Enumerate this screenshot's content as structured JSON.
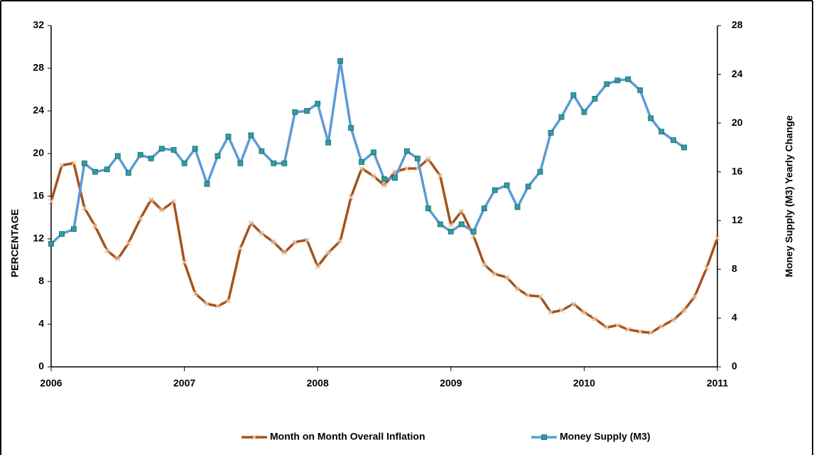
{
  "chart_data": {
    "type": "line",
    "y_label": "PERCENTAGE",
    "y2_label": "Money Supply  (M3) Yearly Change",
    "x": [
      2006,
      2006.08,
      2006.17,
      2006.25,
      2006.33,
      2006.42,
      2006.5,
      2006.58,
      2006.67,
      2006.75,
      2006.83,
      2006.92,
      2007,
      2007.08,
      2007.17,
      2007.25,
      2007.33,
      2007.42,
      2007.5,
      2007.58,
      2007.67,
      2007.75,
      2007.83,
      2007.92,
      2008,
      2008.08,
      2008.17,
      2008.25,
      2008.33,
      2008.42,
      2008.5,
      2008.58,
      2008.67,
      2008.75,
      2008.83,
      2008.92,
      2009,
      2009.08,
      2009.17,
      2009.25,
      2009.33,
      2009.42,
      2009.5,
      2009.58,
      2009.67,
      2009.75,
      2009.83,
      2009.92,
      2010,
      2010.08,
      2010.17,
      2010.25,
      2010.33,
      2010.42,
      2010.5,
      2010.58,
      2010.67,
      2010.75,
      2010.83,
      2010.92,
      2011
    ],
    "series": [
      {
        "name": "Month on Month Overall Inflation",
        "color": "#a4531c",
        "marker": "x",
        "axis": "y",
        "values": [
          15.5,
          18.9,
          19.1,
          14.9,
          13.2,
          10.9,
          10.1,
          11.6,
          13.9,
          15.7,
          14.7,
          15.5,
          9.8,
          6.9,
          5.9,
          5.7,
          6.2,
          11.1,
          13.5,
          12.5,
          11.7,
          10.7,
          11.7,
          11.9,
          9.4,
          10.7,
          11.8,
          15.9,
          18.6,
          17.9,
          17.0,
          18.3,
          18.6,
          18.6,
          19.5,
          17.9,
          13.3,
          14.6,
          12.3,
          9.6,
          8.7,
          8.4,
          7.3,
          6.7,
          6.6,
          5.1,
          5.3,
          5.9,
          5.1,
          4.5,
          3.7,
          3.9,
          3.5,
          3.3,
          3.2,
          3.8,
          4.4,
          5.3,
          6.6,
          9.3,
          12.1
        ]
      },
      {
        "name": "Money Supply (M3)",
        "color": "#5b9bd5",
        "marker": "square",
        "marker_color": "#2aa198",
        "axis": "y2",
        "values": [
          10.1,
          10.9,
          11.3,
          16.7,
          16.0,
          16.2,
          17.3,
          15.9,
          17.4,
          17.1,
          17.9,
          17.8,
          16.7,
          17.9,
          15.0,
          17.3,
          18.9,
          16.7,
          19.0,
          17.7,
          16.7,
          16.7,
          20.9,
          21.0,
          21.6,
          18.4,
          25.1,
          19.6,
          16.8,
          17.6,
          15.4,
          15.5,
          17.7,
          17.1,
          13.0,
          11.7,
          11.1,
          11.7,
          11.1,
          13.0,
          14.5,
          14.9,
          13.1,
          14.8,
          16.0,
          19.2,
          20.5,
          22.3,
          20.9,
          22.0,
          23.2,
          23.5,
          23.6,
          22.7,
          20.4,
          19.3,
          18.6,
          18.0,
          null,
          null,
          null
        ]
      }
    ],
    "xlim": [
      2006,
      2011
    ],
    "xticks": [
      2006,
      2007,
      2008,
      2009,
      2010,
      2011
    ],
    "ylim": [
      0,
      32
    ],
    "yticks": [
      0,
      4,
      8,
      12,
      16,
      20,
      24,
      28,
      32
    ],
    "y2lim": [
      0,
      28
    ],
    "y2ticks": [
      0,
      4,
      8,
      12,
      16,
      20,
      24,
      28
    ],
    "grid": false,
    "legend": "bottom"
  }
}
